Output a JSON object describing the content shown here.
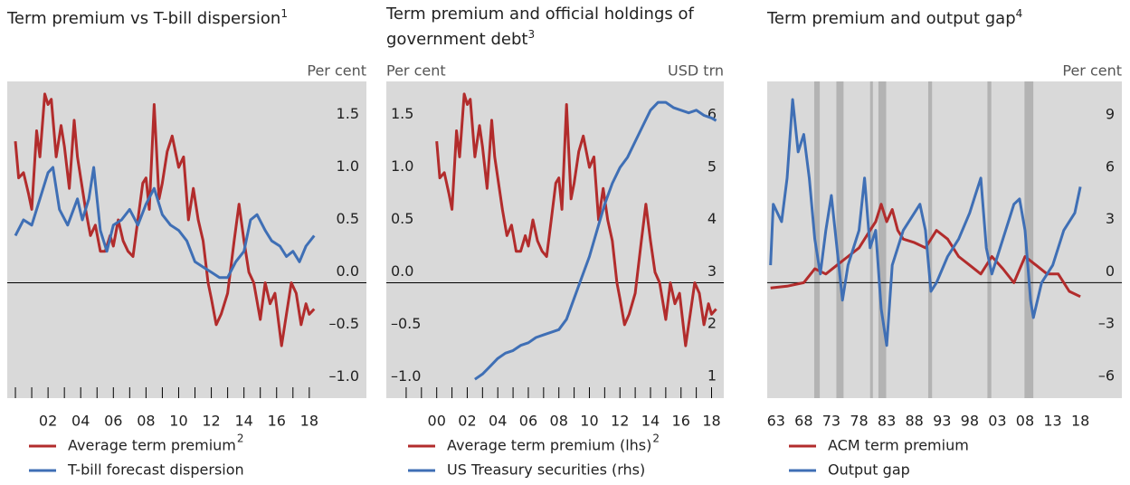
{
  "chart_data": [
    {
      "type": "line",
      "title": "Term premium vs T-bill dispersion",
      "title_footnote": "1",
      "y_unit": "Per cent",
      "xlim": [
        1999.5,
        2021.5
      ],
      "ylim": [
        -1.1,
        1.92
      ],
      "xticks": [
        {
          "value": 2002,
          "label": "02"
        },
        {
          "value": 2004,
          "label": "04"
        },
        {
          "value": 2006,
          "label": "06"
        },
        {
          "value": 2008,
          "label": "08"
        },
        {
          "value": 2010,
          "label": "10"
        },
        {
          "value": 2012,
          "label": "12"
        },
        {
          "value": 2014,
          "label": "14"
        },
        {
          "value": 2016,
          "label": "16"
        },
        {
          "value": 2018,
          "label": "18"
        }
      ],
      "xminor": [
        2000,
        2001,
        2002,
        2003,
        2004,
        2005,
        2006,
        2007,
        2008,
        2009,
        2010,
        2011,
        2012,
        2013,
        2014,
        2015,
        2016,
        2017,
        2018
      ],
      "yticks": [
        {
          "value": -1.0,
          "label": "–1.0"
        },
        {
          "value": -0.5,
          "label": "–0.5"
        },
        {
          "value": 0,
          "label": "0.0"
        },
        0.5,
        {
          "value": 1.0,
          "label": "1.0"
        },
        1.5
      ],
      "series": [
        {
          "name": "Average term premium",
          "name_footnote": "2",
          "color": "#b22c2c",
          "x": [
            2000.0,
            2000.2,
            2000.5,
            2000.8,
            2001.0,
            2001.3,
            2001.5,
            2001.8,
            2002.0,
            2002.2,
            2002.5,
            2002.8,
            2003.0,
            2003.3,
            2003.6,
            2003.8,
            2004.0,
            2004.3,
            2004.6,
            2004.9,
            2005.2,
            2005.5,
            2005.8,
            2006.0,
            2006.3,
            2006.6,
            2006.9,
            2007.2,
            2007.5,
            2007.8,
            2008.0,
            2008.2,
            2008.5,
            2008.8,
            2009.0,
            2009.3,
            2009.6,
            2010.0,
            2010.3,
            2010.6,
            2010.9,
            2011.2,
            2011.5,
            2011.8,
            2012.0,
            2012.3,
            2012.6,
            2013.0,
            2013.4,
            2013.7,
            2014.0,
            2014.3,
            2014.6,
            2015.0,
            2015.3,
            2015.6,
            2015.9,
            2016.3,
            2016.6,
            2016.9,
            2017.2,
            2017.5,
            2017.8,
            2018.0,
            2018.3
          ],
          "values": [
            1.35,
            1.0,
            1.05,
            0.85,
            0.7,
            1.45,
            1.2,
            1.8,
            1.7,
            1.75,
            1.2,
            1.5,
            1.3,
            0.9,
            1.55,
            1.2,
            1.0,
            0.7,
            0.45,
            0.55,
            0.3,
            0.3,
            0.45,
            0.35,
            0.6,
            0.4,
            0.3,
            0.25,
            0.6,
            0.95,
            1.0,
            0.7,
            1.7,
            0.8,
            0.95,
            1.25,
            1.4,
            1.1,
            1.2,
            0.6,
            0.9,
            0.6,
            0.4,
            0.0,
            -0.15,
            -0.4,
            -0.3,
            -0.1,
            0.4,
            0.75,
            0.4,
            0.1,
            0.0,
            -0.35,
            0.0,
            -0.2,
            -0.1,
            -0.6,
            -0.3,
            0.0,
            -0.1,
            -0.4,
            -0.2,
            -0.3,
            -0.25
          ]
        },
        {
          "name": "T-bill forecast dispersion",
          "color": "#3f6fb5",
          "x": [
            2000.0,
            2000.5,
            2001.0,
            2001.5,
            2002.0,
            2002.3,
            2002.7,
            2003.2,
            2003.8,
            2004.1,
            2004.5,
            2004.8,
            2005.2,
            2005.6,
            2006.0,
            2006.5,
            2007.0,
            2007.5,
            2008.0,
            2008.5,
            2009.0,
            2009.5,
            2010.0,
            2010.5,
            2011.0,
            2011.5,
            2012.0,
            2012.5,
            2013.0,
            2013.5,
            2014.0,
            2014.4,
            2014.8,
            2015.3,
            2015.7,
            2016.2,
            2016.6,
            2017.0,
            2017.4,
            2017.8,
            2018.3
          ],
          "values": [
            0.45,
            0.6,
            0.55,
            0.8,
            1.05,
            1.1,
            0.7,
            0.55,
            0.8,
            0.6,
            0.8,
            1.1,
            0.5,
            0.3,
            0.55,
            0.6,
            0.7,
            0.55,
            0.75,
            0.9,
            0.65,
            0.55,
            0.5,
            0.4,
            0.2,
            0.15,
            0.1,
            0.05,
            0.05,
            0.2,
            0.3,
            0.6,
            0.65,
            0.5,
            0.4,
            0.35,
            0.25,
            0.3,
            0.2,
            0.35,
            0.45
          ]
        }
      ]
    },
    {
      "type": "line",
      "title": "Term premium and official holdings of government debt",
      "title_footnote": "3",
      "y_unit": "Per cent",
      "y2_unit": "USD trn",
      "xlim": [
        1996.7,
        2018.8
      ],
      "ylim": [
        -1.1,
        1.92
      ],
      "y2lim": [
        0.79,
        6.85
      ],
      "xticks": [
        {
          "value": 2000,
          "label": "00"
        },
        {
          "value": 2002,
          "label": "02"
        },
        {
          "value": 2004,
          "label": "04"
        },
        {
          "value": 2006,
          "label": "06"
        },
        {
          "value": 2008,
          "label": "08"
        },
        {
          "value": 2010,
          "label": "10"
        },
        {
          "value": 2012,
          "label": "12"
        },
        {
          "value": 2014,
          "label": "14"
        },
        {
          "value": 2016,
          "label": "16"
        },
        {
          "value": 2018,
          "label": "18"
        }
      ],
      "xminor": [
        1998,
        1999,
        2000,
        2001,
        2002,
        2003,
        2004,
        2005,
        2006,
        2007,
        2008,
        2009,
        2010,
        2011,
        2012,
        2013,
        2014,
        2015,
        2016,
        2017,
        2018
      ],
      "yticks": [
        {
          "value": -1.0,
          "label": "–1.0"
        },
        {
          "value": -0.5,
          "label": "–0.5"
        },
        {
          "value": 0,
          "label": "0.0"
        },
        0.5,
        {
          "value": 1.0,
          "label": "1.0"
        },
        1.5
      ],
      "y2ticks": [
        1,
        2,
        3,
        4,
        5,
        6
      ],
      "series": [
        {
          "name": "Average term premium (lhs)",
          "name_footnote": "2",
          "color": "#b22c2c",
          "x": [
            2000.0,
            2000.2,
            2000.5,
            2000.8,
            2001.0,
            2001.3,
            2001.5,
            2001.8,
            2002.0,
            2002.2,
            2002.5,
            2002.8,
            2003.0,
            2003.3,
            2003.6,
            2003.8,
            2004.0,
            2004.3,
            2004.6,
            2004.9,
            2005.2,
            2005.5,
            2005.8,
            2006.0,
            2006.3,
            2006.6,
            2006.9,
            2007.2,
            2007.5,
            2007.8,
            2008.0,
            2008.2,
            2008.5,
            2008.8,
            2009.0,
            2009.3,
            2009.6,
            2010.0,
            2010.3,
            2010.6,
            2010.9,
            2011.2,
            2011.5,
            2011.8,
            2012.0,
            2012.3,
            2012.6,
            2013.0,
            2013.4,
            2013.7,
            2014.0,
            2014.3,
            2014.6,
            2015.0,
            2015.3,
            2015.6,
            2015.9,
            2016.3,
            2016.6,
            2016.9,
            2017.2,
            2017.5,
            2017.8,
            2018.0,
            2018.3
          ],
          "values": [
            1.35,
            1.0,
            1.05,
            0.85,
            0.7,
            1.45,
            1.2,
            1.8,
            1.7,
            1.75,
            1.2,
            1.5,
            1.3,
            0.9,
            1.55,
            1.2,
            1.0,
            0.7,
            0.45,
            0.55,
            0.3,
            0.3,
            0.45,
            0.35,
            0.6,
            0.4,
            0.3,
            0.25,
            0.6,
            0.95,
            1.0,
            0.7,
            1.7,
            0.8,
            0.95,
            1.25,
            1.4,
            1.1,
            1.2,
            0.6,
            0.9,
            0.6,
            0.4,
            0.0,
            -0.15,
            -0.4,
            -0.3,
            -0.1,
            0.4,
            0.75,
            0.4,
            0.1,
            0.0,
            -0.35,
            0.0,
            -0.2,
            -0.1,
            -0.6,
            -0.3,
            0.0,
            -0.1,
            -0.4,
            -0.2,
            -0.3,
            -0.25
          ]
        },
        {
          "name": "US Treasury securities (rhs)",
          "color": "#3f6fb5",
          "axis": "y2",
          "x": [
            2002.5,
            2003.0,
            2003.5,
            2004.0,
            2004.5,
            2005.0,
            2005.5,
            2006.0,
            2006.5,
            2007.0,
            2007.5,
            2008.0,
            2008.5,
            2009.0,
            2009.5,
            2010.0,
            2010.5,
            2011.0,
            2011.5,
            2012.0,
            2012.5,
            2013.0,
            2013.5,
            2014.0,
            2014.5,
            2015.0,
            2015.5,
            2016.0,
            2016.5,
            2017.0,
            2017.5,
            2018.0,
            2018.3
          ],
          "values": [
            1.15,
            1.25,
            1.4,
            1.55,
            1.65,
            1.7,
            1.8,
            1.85,
            1.95,
            2.0,
            2.05,
            2.1,
            2.3,
            2.7,
            3.1,
            3.5,
            4.0,
            4.5,
            4.9,
            5.2,
            5.4,
            5.7,
            6.0,
            6.3,
            6.45,
            6.45,
            6.35,
            6.3,
            6.25,
            6.3,
            6.2,
            6.15,
            6.1
          ]
        }
      ]
    },
    {
      "type": "line",
      "title": "Term premium and output gap",
      "title_footnote": "4",
      "y_unit": "Per cent",
      "xlim": [
        1961.4,
        2025.5
      ],
      "ylim": [
        -6.62,
        11.54
      ],
      "xticks": [
        {
          "value": 1963,
          "label": "63"
        },
        {
          "value": 1968,
          "label": "68"
        },
        {
          "value": 1973,
          "label": "73"
        },
        {
          "value": 1978,
          "label": "78"
        },
        {
          "value": 1983,
          "label": "83"
        },
        {
          "value": 1988,
          "label": "88"
        },
        {
          "value": 1993,
          "label": "93"
        },
        {
          "value": 1998,
          "label": "98"
        },
        {
          "value": 2003,
          "label": "03"
        },
        {
          "value": 2008,
          "label": "08"
        },
        {
          "value": 2013,
          "label": "13"
        },
        {
          "value": 2018,
          "label": "18"
        }
      ],
      "yticks": [
        {
          "value": -6,
          "label": "–6"
        },
        {
          "value": -3,
          "label": "–3"
        },
        0,
        3,
        6,
        9
      ],
      "recessions": [
        [
          1969.9,
          1970.9
        ],
        [
          1973.9,
          1975.2
        ],
        [
          1980.0,
          1980.5
        ],
        [
          1981.5,
          1982.9
        ],
        [
          1990.5,
          1991.2
        ],
        [
          2001.2,
          2001.9
        ],
        [
          2007.9,
          2009.5
        ]
      ],
      "series": [
        {
          "name": "ACM term premium",
          "color": "#b22c2c",
          "x": [
            1962,
            1965,
            1968,
            1970,
            1972,
            1974,
            1976,
            1978,
            1980,
            1981,
            1982,
            1983,
            1984,
            1985,
            1986,
            1988,
            1990,
            1992,
            1994,
            1996,
            1998,
            2000,
            2002,
            2004,
            2006,
            2008,
            2010,
            2012,
            2014,
            2016,
            2018
          ],
          "values": [
            -0.3,
            -0.2,
            0.0,
            0.8,
            0.5,
            1.0,
            1.5,
            2.0,
            3.0,
            3.5,
            4.5,
            3.5,
            4.2,
            3.0,
            2.5,
            2.3,
            2.0,
            3.0,
            2.5,
            1.5,
            1.0,
            0.5,
            1.5,
            0.8,
            0.0,
            1.5,
            1.0,
            0.5,
            0.5,
            -0.5,
            -0.8
          ]
        },
        {
          "name": "Output gap",
          "color": "#3f6fb5",
          "x": [
            1962,
            1962.5,
            1964,
            1965,
            1966,
            1967,
            1968,
            1969,
            1970,
            1971,
            1972,
            1973,
            1974,
            1975,
            1976,
            1978,
            1979,
            1980,
            1981,
            1982,
            1983,
            1984,
            1986,
            1988,
            1989,
            1990,
            1991,
            1992,
            1994,
            1996,
            1998,
            1999,
            2000,
            2001,
            2002,
            2003,
            2005,
            2006,
            2007,
            2008,
            2009,
            2009.5,
            2011,
            2013,
            2015,
            2017,
            2018
          ],
          "values": [
            1.0,
            4.5,
            3.5,
            6.0,
            10.5,
            7.5,
            8.5,
            6.0,
            2.5,
            0.5,
            3.0,
            5.0,
            2.0,
            -1.0,
            1.0,
            3.0,
            6.0,
            2.0,
            3.0,
            -1.5,
            -3.6,
            1.0,
            3.0,
            4.0,
            4.5,
            3.0,
            -0.5,
            0.0,
            1.5,
            2.5,
            4.0,
            5.0,
            6.0,
            2.0,
            0.5,
            1.5,
            3.5,
            4.5,
            4.8,
            3.0,
            -1.0,
            -2.0,
            0.0,
            1.0,
            3.0,
            4.0,
            5.5
          ]
        }
      ]
    }
  ]
}
